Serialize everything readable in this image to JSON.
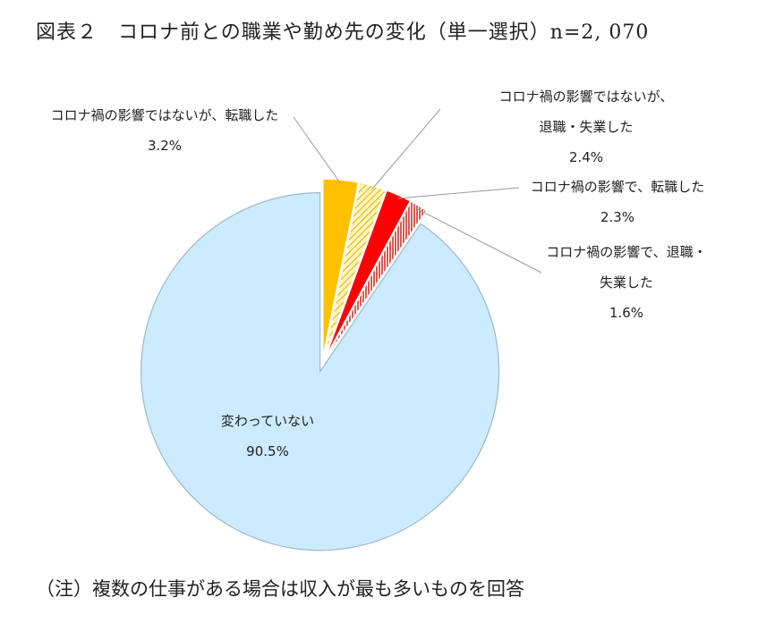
{
  "title": "図表２　コロナ前との職業や勤め先の変化（単一選択）n=2, 070",
  "note": "（注）複数の仕事がある場合は収入が最も多いものを回答",
  "chart_data": {
    "type": "pie",
    "slices": [
      {
        "label_lines": [
          "コロナ禍の影響ではないが、転職した"
        ],
        "value": 3.2,
        "value_text": "3.2%",
        "color": "#FFC000",
        "pattern": "solid"
      },
      {
        "label_lines": [
          "コロナ禍の影響ではないが、",
          "退職・失業した"
        ],
        "value": 2.4,
        "value_text": "2.4%",
        "color": "#FFD966",
        "pattern": "diagonal-hatch"
      },
      {
        "label_lines": [
          "コロナ禍の影響で、転職した"
        ],
        "value": 2.3,
        "value_text": "2.3%",
        "color": "#FF0000",
        "pattern": "solid"
      },
      {
        "label_lines": [
          "コロナ禍の影響で、退職・",
          "失業した"
        ],
        "value": 1.6,
        "value_text": "1.6%",
        "color": "#C00000",
        "pattern": "vertical-hatch"
      },
      {
        "label_lines": [
          "変わっていない"
        ],
        "value": 90.5,
        "value_text": "90.5%",
        "color": "#CCEBFF",
        "pattern": "solid"
      }
    ]
  }
}
